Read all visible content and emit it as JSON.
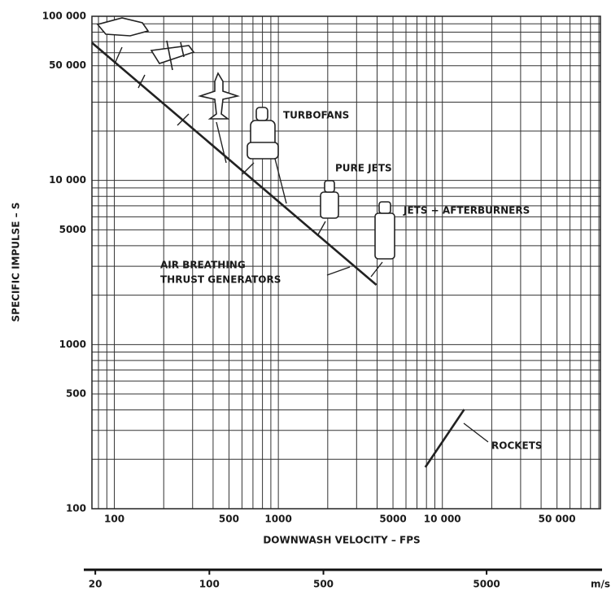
{
  "chart_data": {
    "type": "line",
    "xlabel": "DOWNWASH VELOCITY – FPS",
    "ylabel": "SPECIFIC IMPULSE – S",
    "xscale": "log",
    "yscale": "log",
    "grid": true,
    "xlim": [
      73,
      92000
    ],
    "ylim": [
      100,
      100000
    ],
    "xticks": [
      100,
      500,
      1000,
      5000,
      {
        "value": 10000,
        "label": "10 000"
      },
      {
        "value": 50000,
        "label": "50 000"
      }
    ],
    "yticks": [
      100,
      500,
      1000,
      5000,
      {
        "value": 10000,
        "label": "10 000"
      },
      {
        "value": 50000,
        "label": "50 000"
      },
      {
        "value": 100000,
        "label": "100 000"
      }
    ],
    "xminor": [
      80,
      90,
      200,
      300,
      400,
      600,
      700,
      800,
      900,
      2000,
      3000,
      4000,
      6000,
      7000,
      8000,
      9000,
      20000,
      30000,
      40000,
      60000,
      70000,
      80000,
      90000
    ],
    "yminor": [
      200,
      300,
      400,
      600,
      700,
      800,
      900,
      2000,
      3000,
      4000,
      6000,
      7000,
      8000,
      9000,
      20000,
      30000,
      40000,
      60000,
      70000,
      80000,
      90000
    ],
    "x2label": "m/s",
    "x2lim": [
      17,
      25500
    ],
    "x2ticks": [
      20,
      100,
      500,
      5000
    ],
    "series": [
      {
        "color": "#222222",
        "x": [
          73,
          3960
        ],
        "values": [
          69000,
          2310
        ]
      },
      {
        "color": "#222222",
        "x": [
          7870,
          13600
        ],
        "values": [
          179,
          403
        ]
      }
    ],
    "annotations": [
      "TURBOFANS",
      "PURE JETS",
      "JETS + AFTERBURNERS",
      "AIR BREATHING",
      "THRUST GENERATORS",
      "ROCKETS"
    ]
  }
}
